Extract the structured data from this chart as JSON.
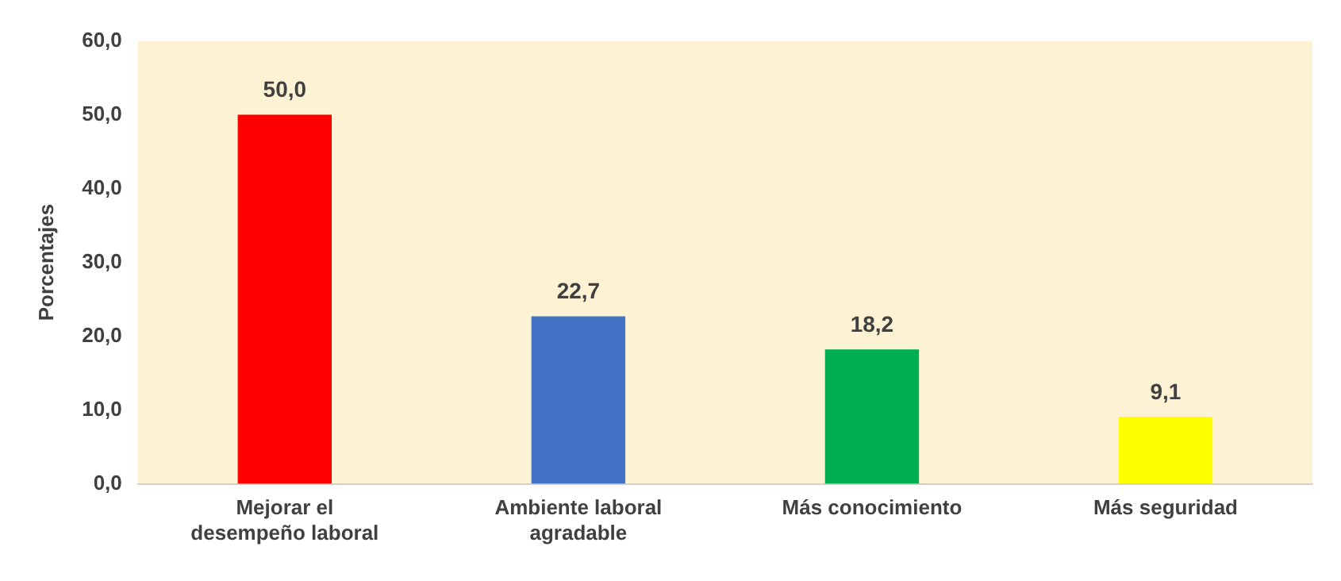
{
  "chart_data": {
    "type": "bar",
    "ylabel": "Porcentajes",
    "categories": [
      "Mejorar el desempeño laboral",
      "Ambiente laboral agradable",
      "Más conocimiento",
      "Más seguridad"
    ],
    "values": [
      50.0,
      22.7,
      18.2,
      9.1
    ],
    "colors": [
      "#ff0000",
      "#4472c4",
      "#00b050",
      "#ffff00"
    ],
    "value_labels": [
      "50,0",
      "22,7",
      "18,2",
      "9,1"
    ],
    "ylim": [
      0,
      60
    ],
    "yticks": [
      {
        "value": 0,
        "label": "0,0"
      },
      {
        "value": 10,
        "label": "10,0"
      },
      {
        "value": 20,
        "label": "20,0"
      },
      {
        "value": 30,
        "label": "30,0"
      },
      {
        "value": 40,
        "label": "40,0"
      },
      {
        "value": 50,
        "label": "50,0"
      },
      {
        "value": 60,
        "label": "60,0"
      }
    ],
    "grid": false,
    "legend": false
  }
}
